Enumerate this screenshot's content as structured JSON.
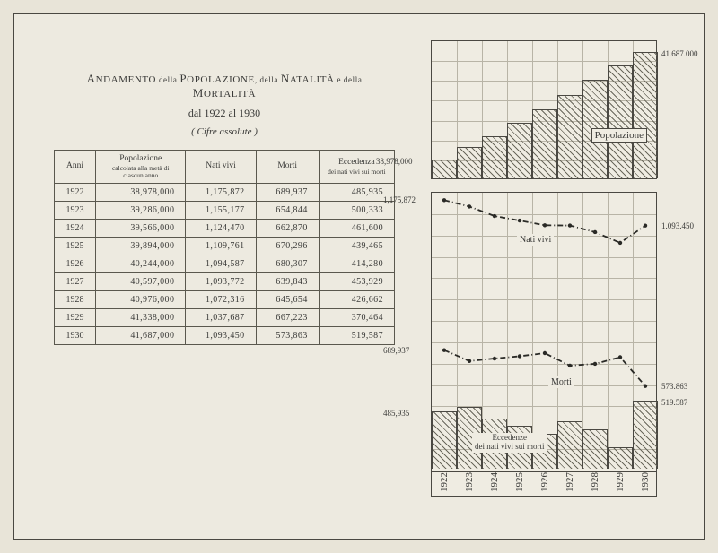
{
  "title": {
    "line1_parts": [
      "A",
      "NDAMENTO",
      " della ",
      "P",
      "OPOLAZIONE",
      ", della ",
      "N",
      "ATALITÀ",
      " e della ",
      "M",
      "ORTALITÀ"
    ],
    "line2": "dal 1922 al 1930",
    "line3": "( Cifre assolute )"
  },
  "table": {
    "headers": [
      "Anni",
      "Popolazione",
      "Nati vivi",
      "Morti",
      "Eccedenza"
    ],
    "sub_headers": [
      "",
      "calcolata alla metà di ciascun anno",
      "",
      "",
      "dei nati vivi sui morti"
    ],
    "rows": [
      {
        "anno": "1922",
        "pop": "38,978,000",
        "nati": "1,175,872",
        "morti": "689,937",
        "ecc": "485,935"
      },
      {
        "anno": "1923",
        "pop": "39,286,000",
        "nati": "1,155,177",
        "morti": "654,844",
        "ecc": "500,333"
      },
      {
        "anno": "1924",
        "pop": "39,566,000",
        "nati": "1,124,470",
        "morti": "662,870",
        "ecc": "461,600"
      },
      {
        "anno": "1925",
        "pop": "39,894,000",
        "nati": "1,109,761",
        "morti": "670,296",
        "ecc": "439,465"
      },
      {
        "anno": "1926",
        "pop": "40,244,000",
        "nati": "1,094,587",
        "morti": "680,307",
        "ecc": "414,280"
      },
      {
        "anno": "1927",
        "pop": "40,597,000",
        "nati": "1,093,772",
        "morti": "639,843",
        "ecc": "453,929"
      },
      {
        "anno": "1928",
        "pop": "40,976,000",
        "nati": "1,072,316",
        "morti": "645,654",
        "ecc": "426,662"
      },
      {
        "anno": "1929",
        "pop": "41,338,000",
        "nati": "1,037,687",
        "morti": "667,223",
        "ecc": "370,464"
      },
      {
        "anno": "1930",
        "pop": "41,687,000",
        "nati": "1,093,450",
        "morti": "573,863",
        "ecc": "519,587"
      }
    ]
  },
  "chart_top": {
    "type": "step-bar",
    "label": "Popolazione",
    "left_value": "38,978,000",
    "right_value": "41.687.000",
    "years": [
      "1922",
      "1923",
      "1924",
      "1925",
      "1926",
      "1927",
      "1928",
      "1929",
      "1930"
    ],
    "values": [
      38978,
      39286,
      39566,
      39894,
      40244,
      40597,
      40976,
      41338,
      41687
    ],
    "ymin": 38500,
    "ymax": 42000,
    "n_hgrid": 7,
    "bar_color_pattern": "diagonal-hatch",
    "border_color": "#4a4842",
    "grid_color": "#b8b4a6",
    "background": "#efece2"
  },
  "chart_bot": {
    "type": "line+bar",
    "labels": {
      "nati": "Nati vivi",
      "morti": "Morti",
      "ecc": "Eccedenze\ndei nati vivi sui morti"
    },
    "years": [
      "1922",
      "1923",
      "1924",
      "1925",
      "1926",
      "1927",
      "1928",
      "1929",
      "1930"
    ],
    "nati": [
      1175872,
      1155177,
      1124470,
      1109761,
      1094587,
      1093772,
      1072316,
      1037687,
      1093450
    ],
    "morti": [
      689937,
      654844,
      662870,
      670296,
      680307,
      639843,
      645654,
      667223,
      573863
    ],
    "ecc": [
      485935,
      500333,
      461600,
      439465,
      414280,
      453929,
      426662,
      370464,
      519587
    ],
    "ymin": 300000,
    "ymax": 1200000,
    "n_hgrid": 13,
    "side_labels": {
      "nati_left": "1,175,872",
      "morti_left": "689,937",
      "ecc_left": "485,935",
      "nati_right": "1.093.450",
      "morti_right": "573.863",
      "ecc_right": "519.587"
    },
    "line_color": "#2a2a26",
    "bar_pattern": "diagonal-hatch",
    "border_color": "#4a4842",
    "grid_color": "#b8b4a6",
    "background": "#efece2"
  }
}
